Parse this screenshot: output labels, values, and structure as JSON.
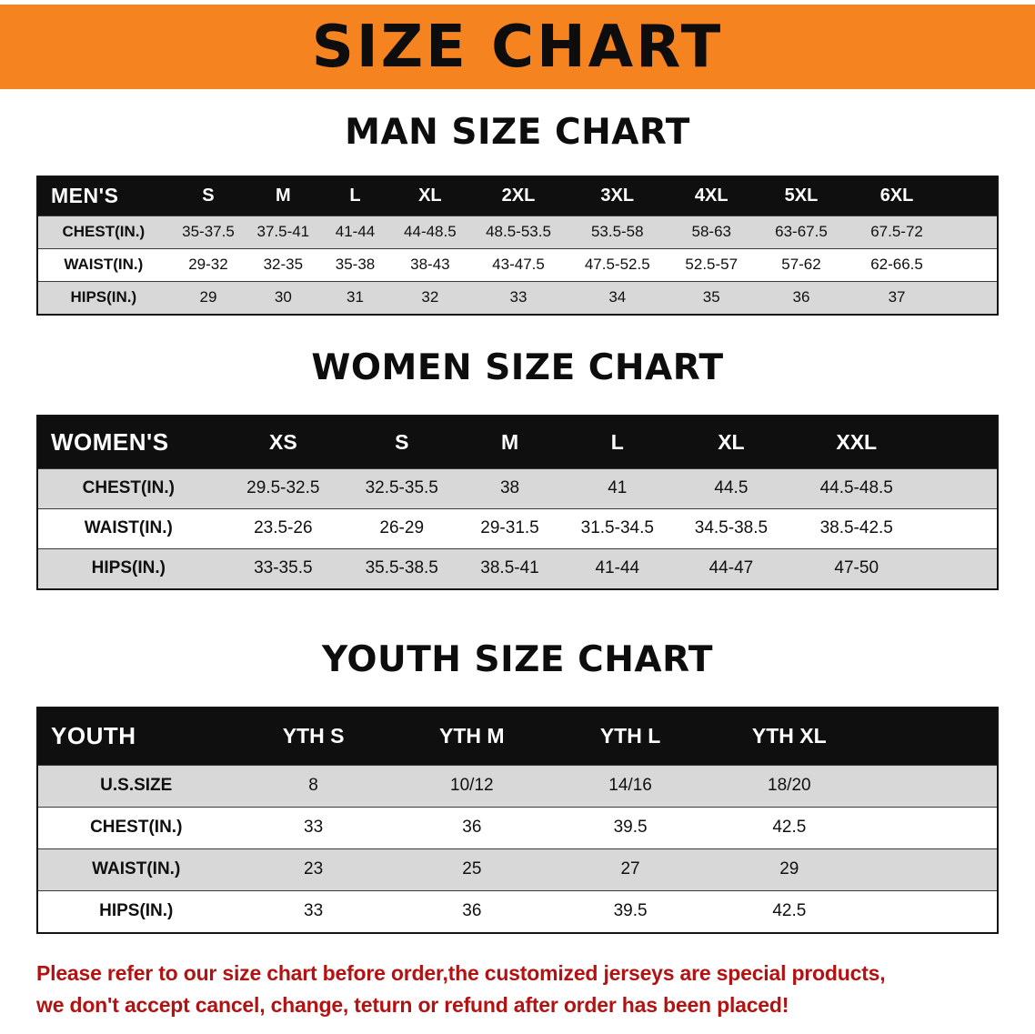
{
  "banner": {
    "title": "SIZE CHART",
    "bg_color": "#F5831F",
    "text_color": "#0d0d0d"
  },
  "sections": [
    {
      "heading": "MAN SIZE CHART",
      "table": {
        "title": "MEN'S",
        "sizes": [
          "S",
          "M",
          "L",
          "XL",
          "2XL",
          "3XL",
          "4XL",
          "5XL",
          "6XL"
        ],
        "rows": [
          {
            "label": "CHEST(IN.)",
            "shaded": true,
            "values": [
              "35-37.5",
              "37.5-41",
              "41-44",
              "44-48.5",
              "48.5-53.5",
              "53.5-58",
              "58-63",
              "63-67.5",
              "67.5-72"
            ]
          },
          {
            "label": "WAIST(IN.)",
            "shaded": false,
            "values": [
              "29-32",
              "32-35",
              "35-38",
              "38-43",
              "43-47.5",
              "47.5-52.5",
              "52.5-57",
              "57-62",
              "62-66.5"
            ]
          },
          {
            "label": "HIPS(IN.)",
            "shaded": true,
            "values": [
              "29",
              "30",
              "31",
              "32",
              "33",
              "34",
              "35",
              "36",
              "37"
            ]
          }
        ]
      }
    },
    {
      "heading": "WOMEN SIZE CHART",
      "table": {
        "title": "WOMEN'S",
        "sizes": [
          "XS",
          "S",
          "M",
          "L",
          "XL",
          "XXL"
        ],
        "rows": [
          {
            "label": "CHEST(IN.)",
            "shaded": true,
            "values": [
              "29.5-32.5",
              "32.5-35.5",
              "38",
              "41",
              "44.5",
              "44.5-48.5"
            ]
          },
          {
            "label": "WAIST(IN.)",
            "shaded": false,
            "values": [
              "23.5-26",
              "26-29",
              "29-31.5",
              "31.5-34.5",
              "34.5-38.5",
              "38.5-42.5"
            ]
          },
          {
            "label": "HIPS(IN.)",
            "shaded": true,
            "values": [
              "33-35.5",
              "35.5-38.5",
              "38.5-41",
              "41-44",
              "44-47",
              "47-50"
            ]
          }
        ]
      }
    },
    {
      "heading": "YOUTH SIZE CHART",
      "table": {
        "title": "YOUTH",
        "sizes": [
          "YTH S",
          "YTH M",
          "YTH L",
          "YTH XL"
        ],
        "rows": [
          {
            "label": "U.S.SIZE",
            "shaded": true,
            "values": [
              "8",
              "10/12",
              "14/16",
              "18/20"
            ]
          },
          {
            "label": "CHEST(IN.)",
            "shaded": false,
            "values": [
              "33",
              "36",
              "39.5",
              "42.5"
            ]
          },
          {
            "label": "WAIST(IN.)",
            "shaded": true,
            "values": [
              "23",
              "25",
              "27",
              "29"
            ]
          },
          {
            "label": "HIPS(IN.)",
            "shaded": false,
            "values": [
              "33",
              "36",
              "39.5",
              "42.5"
            ]
          }
        ]
      }
    }
  ],
  "footer": {
    "lines": [
      "Please refer to our size chart before order,the customized jerseys are special products,",
      "we don't accept cancel, change, teturn or refund after order has been placed!"
    ],
    "text_color": "#B31212"
  }
}
